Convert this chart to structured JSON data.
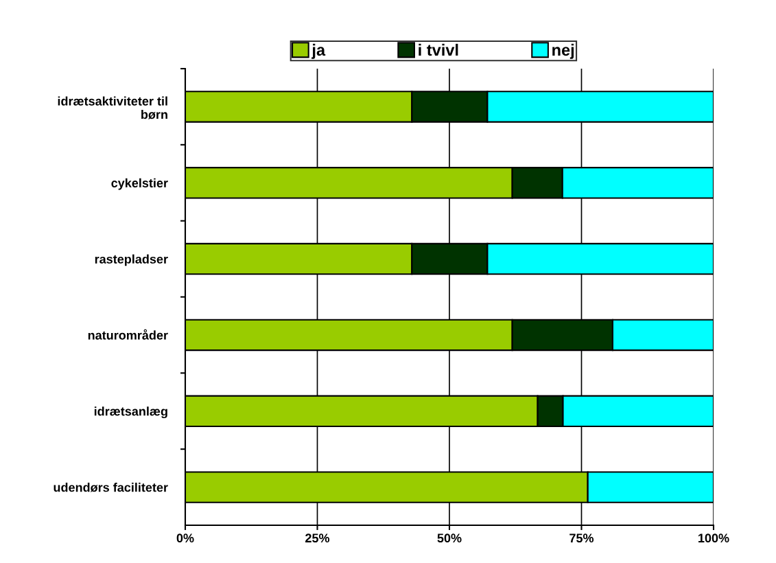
{
  "chart_data": {
    "type": "bar",
    "orientation": "horizontal",
    "stacked": true,
    "categories": [
      "idrætsaktiviteter til\nbørn",
      "cykelstier",
      "rastepladser",
      "naturområder",
      "idrætsanlæg",
      "udendørs faciliteter"
    ],
    "series": [
      {
        "name": "ja",
        "color": "#99cc00",
        "values": [
          42.9,
          61.9,
          42.9,
          61.9,
          66.7,
          76.2
        ]
      },
      {
        "name": "i tvivl",
        "color": "#003300",
        "values": [
          14.3,
          9.5,
          14.3,
          19.0,
          4.8,
          0
        ]
      },
      {
        "name": "nej",
        "color": "#00ffff",
        "values": [
          42.8,
          28.6,
          42.8,
          19.1,
          28.5,
          23.8
        ]
      }
    ],
    "xlim": [
      0,
      100
    ],
    "xticks": [
      {
        "value": 0,
        "label": "0%"
      },
      {
        "value": 25,
        "label": "25%"
      },
      {
        "value": 50,
        "label": "50%"
      },
      {
        "value": 75,
        "label": "75%"
      },
      {
        "value": 100,
        "label": "100%"
      }
    ],
    "grid": "x",
    "legend": "top"
  }
}
